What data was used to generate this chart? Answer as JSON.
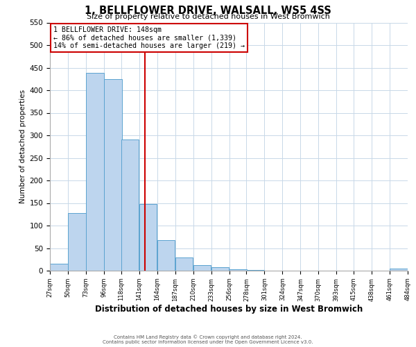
{
  "title": "1, BELLFLOWER DRIVE, WALSALL, WS5 4SS",
  "subtitle": "Size of property relative to detached houses in West Bromwich",
  "xlabel": "Distribution of detached houses by size in West Bromwich",
  "ylabel": "Number of detached properties",
  "bar_left_edges": [
    27,
    50,
    73,
    96,
    118,
    141,
    164,
    187,
    210,
    233,
    256,
    278,
    301,
    324,
    347,
    370,
    393,
    415,
    438,
    461
  ],
  "bar_heights": [
    15,
    128,
    438,
    425,
    291,
    148,
    67,
    29,
    13,
    7,
    3,
    1,
    0,
    0,
    0,
    0,
    0,
    0,
    0,
    5
  ],
  "bin_width": 23,
  "bar_color": "#bdd5ee",
  "bar_edge_color": "#5ba3d0",
  "property_line_x": 148,
  "property_line_color": "#cc0000",
  "annotation_text": "1 BELLFLOWER DRIVE: 148sqm\n← 86% of detached houses are smaller (1,339)\n14% of semi-detached houses are larger (219) →",
  "annotation_box_color": "#ffffff",
  "annotation_box_edge_color": "#cc0000",
  "tick_labels": [
    "27sqm",
    "50sqm",
    "73sqm",
    "96sqm",
    "118sqm",
    "141sqm",
    "164sqm",
    "187sqm",
    "210sqm",
    "233sqm",
    "256sqm",
    "278sqm",
    "301sqm",
    "324sqm",
    "347sqm",
    "370sqm",
    "393sqm",
    "415sqm",
    "438sqm",
    "461sqm",
    "484sqm"
  ],
  "ylim": [
    0,
    550
  ],
  "yticks": [
    0,
    50,
    100,
    150,
    200,
    250,
    300,
    350,
    400,
    450,
    500,
    550
  ],
  "footer_line1": "Contains HM Land Registry data © Crown copyright and database right 2024.",
  "footer_line2": "Contains public sector information licensed under the Open Government Licence v3.0.",
  "bg_color": "#ffffff",
  "grid_color": "#c8d8e8"
}
